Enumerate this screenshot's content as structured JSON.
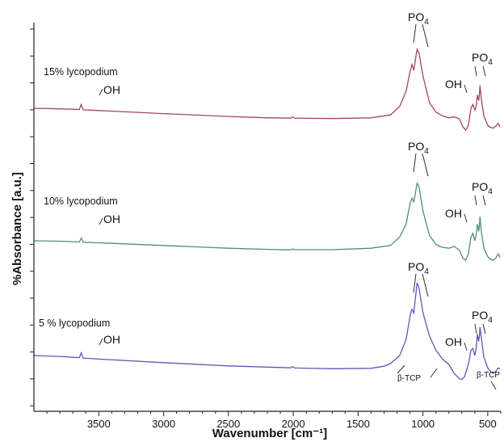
{
  "chart_data": {
    "type": "line",
    "xlabel": "Wavenumber [cm⁻¹]",
    "ylabel": "%Absorbance [a.u.]",
    "xlim": [
      4000,
      400
    ],
    "x_reversed": true,
    "xticks": [
      3500,
      3000,
      2500,
      2000,
      1500,
      1000,
      500
    ],
    "grid": false,
    "series": [
      {
        "name": "15% lycopodium",
        "color": "#a0485a",
        "points": [
          [
            4000,
            13.0
          ],
          [
            3800,
            12.7
          ],
          [
            3700,
            12.5
          ],
          [
            3650,
            12.3
          ],
          [
            3635,
            15.0
          ],
          [
            3620,
            12.2
          ],
          [
            3500,
            11.8
          ],
          [
            3000,
            10.2
          ],
          [
            2500,
            8.7
          ],
          [
            2200,
            8.0
          ],
          [
            2020,
            7.8
          ],
          [
            2005,
            8.4
          ],
          [
            1990,
            7.8
          ],
          [
            1700,
            7.6
          ],
          [
            1400,
            8.0
          ],
          [
            1250,
            9.5
          ],
          [
            1180,
            14.0
          ],
          [
            1130,
            22.0
          ],
          [
            1100,
            32.0
          ],
          [
            1085,
            36.0
          ],
          [
            1070,
            33.0
          ],
          [
            1060,
            38.0
          ],
          [
            1045,
            44.0
          ],
          [
            1030,
            42.0
          ],
          [
            1000,
            30.0
          ],
          [
            950,
            16.0
          ],
          [
            900,
            11.0
          ],
          [
            850,
            9.0
          ],
          [
            800,
            8.0
          ],
          [
            760,
            8.5
          ],
          [
            720,
            7.5
          ],
          [
            690,
            3.0
          ],
          [
            670,
            1.5
          ],
          [
            650,
            4.0
          ],
          [
            630,
            13.0
          ],
          [
            615,
            15.0
          ],
          [
            600,
            12.0
          ],
          [
            590,
            14.0
          ],
          [
            580,
            20.0
          ],
          [
            570,
            17.0
          ],
          [
            565,
            20.0
          ],
          [
            560,
            25.0
          ],
          [
            550,
            18.0
          ],
          [
            530,
            9.0
          ],
          [
            500,
            4.0
          ],
          [
            480,
            3.0
          ],
          [
            460,
            2.5
          ],
          [
            440,
            3.5
          ],
          [
            420,
            5.0
          ],
          [
            405,
            3.0
          ]
        ]
      },
      {
        "name": "10% lycopodium",
        "color": "#4f8c86",
        "points": [
          [
            4000,
            13.0
          ],
          [
            3800,
            12.8
          ],
          [
            3700,
            12.5
          ],
          [
            3650,
            12.3
          ],
          [
            3635,
            14.5
          ],
          [
            3620,
            12.2
          ],
          [
            3500,
            11.9
          ],
          [
            3000,
            10.5
          ],
          [
            2500,
            9.0
          ],
          [
            2200,
            8.4
          ],
          [
            2020,
            8.1
          ],
          [
            2005,
            8.6
          ],
          [
            1990,
            8.2
          ],
          [
            1700,
            8.2
          ],
          [
            1400,
            9.0
          ],
          [
            1250,
            10.5
          ],
          [
            1180,
            15.0
          ],
          [
            1130,
            22.0
          ],
          [
            1100,
            33.0
          ],
          [
            1085,
            36.0
          ],
          [
            1070,
            34.0
          ],
          [
            1060,
            38.0
          ],
          [
            1045,
            44.0
          ],
          [
            1030,
            42.0
          ],
          [
            1000,
            29.0
          ],
          [
            950,
            16.0
          ],
          [
            900,
            11.0
          ],
          [
            850,
            9.5
          ],
          [
            800,
            9.0
          ],
          [
            760,
            10.0
          ],
          [
            720,
            8.0
          ],
          [
            690,
            3.5
          ],
          [
            670,
            2.5
          ],
          [
            650,
            6.0
          ],
          [
            630,
            15.0
          ],
          [
            615,
            17.0
          ],
          [
            600,
            13.0
          ],
          [
            590,
            16.0
          ],
          [
            580,
            22.0
          ],
          [
            570,
            18.0
          ],
          [
            565,
            21.0
          ],
          [
            560,
            26.0
          ],
          [
            550,
            18.0
          ],
          [
            530,
            9.0
          ],
          [
            500,
            4.5
          ],
          [
            480,
            3.0
          ],
          [
            460,
            2.5
          ],
          [
            440,
            3.5
          ],
          [
            420,
            6.0
          ],
          [
            405,
            4.0
          ]
        ]
      },
      {
        "name": "5 % lycopodium",
        "color": "#5a5ab8",
        "points": [
          [
            4000,
            14.0
          ],
          [
            3800,
            13.5
          ],
          [
            3700,
            13.0
          ],
          [
            3650,
            12.8
          ],
          [
            3635,
            15.5
          ],
          [
            3620,
            12.6
          ],
          [
            3500,
            12.0
          ],
          [
            3000,
            10.0
          ],
          [
            2500,
            8.2
          ],
          [
            2200,
            7.5
          ],
          [
            2020,
            7.1
          ],
          [
            2005,
            7.7
          ],
          [
            1990,
            7.0
          ],
          [
            1700,
            6.6
          ],
          [
            1400,
            6.8
          ],
          [
            1300,
            8.0
          ],
          [
            1250,
            9.5
          ],
          [
            1180,
            14.0
          ],
          [
            1130,
            23.0
          ],
          [
            1100,
            36.0
          ],
          [
            1085,
            40.0
          ],
          [
            1070,
            38.0
          ],
          [
            1060,
            45.0
          ],
          [
            1045,
            55.0
          ],
          [
            1030,
            52.0
          ],
          [
            1000,
            38.0
          ],
          [
            950,
            25.0
          ],
          [
            900,
            17.0
          ],
          [
            850,
            12.0
          ],
          [
            800,
            9.0
          ],
          [
            760,
            4.0
          ],
          [
            720,
            1.0
          ],
          [
            700,
            0.5
          ],
          [
            680,
            2.0
          ],
          [
            650,
            9.0
          ],
          [
            630,
            17.0
          ],
          [
            615,
            18.0
          ],
          [
            600,
            14.0
          ],
          [
            590,
            18.0
          ],
          [
            580,
            26.0
          ],
          [
            570,
            22.0
          ],
          [
            565,
            25.0
          ],
          [
            560,
            30.0
          ],
          [
            550,
            24.0
          ],
          [
            530,
            13.0
          ],
          [
            500,
            7.0
          ],
          [
            480,
            5.0
          ],
          [
            460,
            4.0
          ],
          [
            440,
            5.0
          ],
          [
            420,
            7.0
          ],
          [
            405,
            6.5
          ]
        ]
      }
    ],
    "annotations": [
      {
        "text": "OH",
        "series": 0
      },
      {
        "text": "PO",
        "sub": "4",
        "series": 0
      },
      {
        "text": "OH",
        "series": 0
      },
      {
        "text": "PO",
        "sub": "4",
        "series": 0
      },
      {
        "text": "OH",
        "series": 1
      },
      {
        "text": "PO",
        "sub": "4",
        "series": 1
      },
      {
        "text": "OH",
        "series": 1
      },
      {
        "text": "PO",
        "sub": "4",
        "series": 1
      },
      {
        "text": "OH",
        "series": 2
      },
      {
        "text": "PO",
        "sub": "4",
        "series": 2
      },
      {
        "text": "OH",
        "series": 2
      },
      {
        "text": "PO",
        "sub": "4",
        "series": 2
      },
      {
        "text": "β-TCP",
        "series": 2
      },
      {
        "text": "β-TCP",
        "series": 2
      }
    ]
  }
}
